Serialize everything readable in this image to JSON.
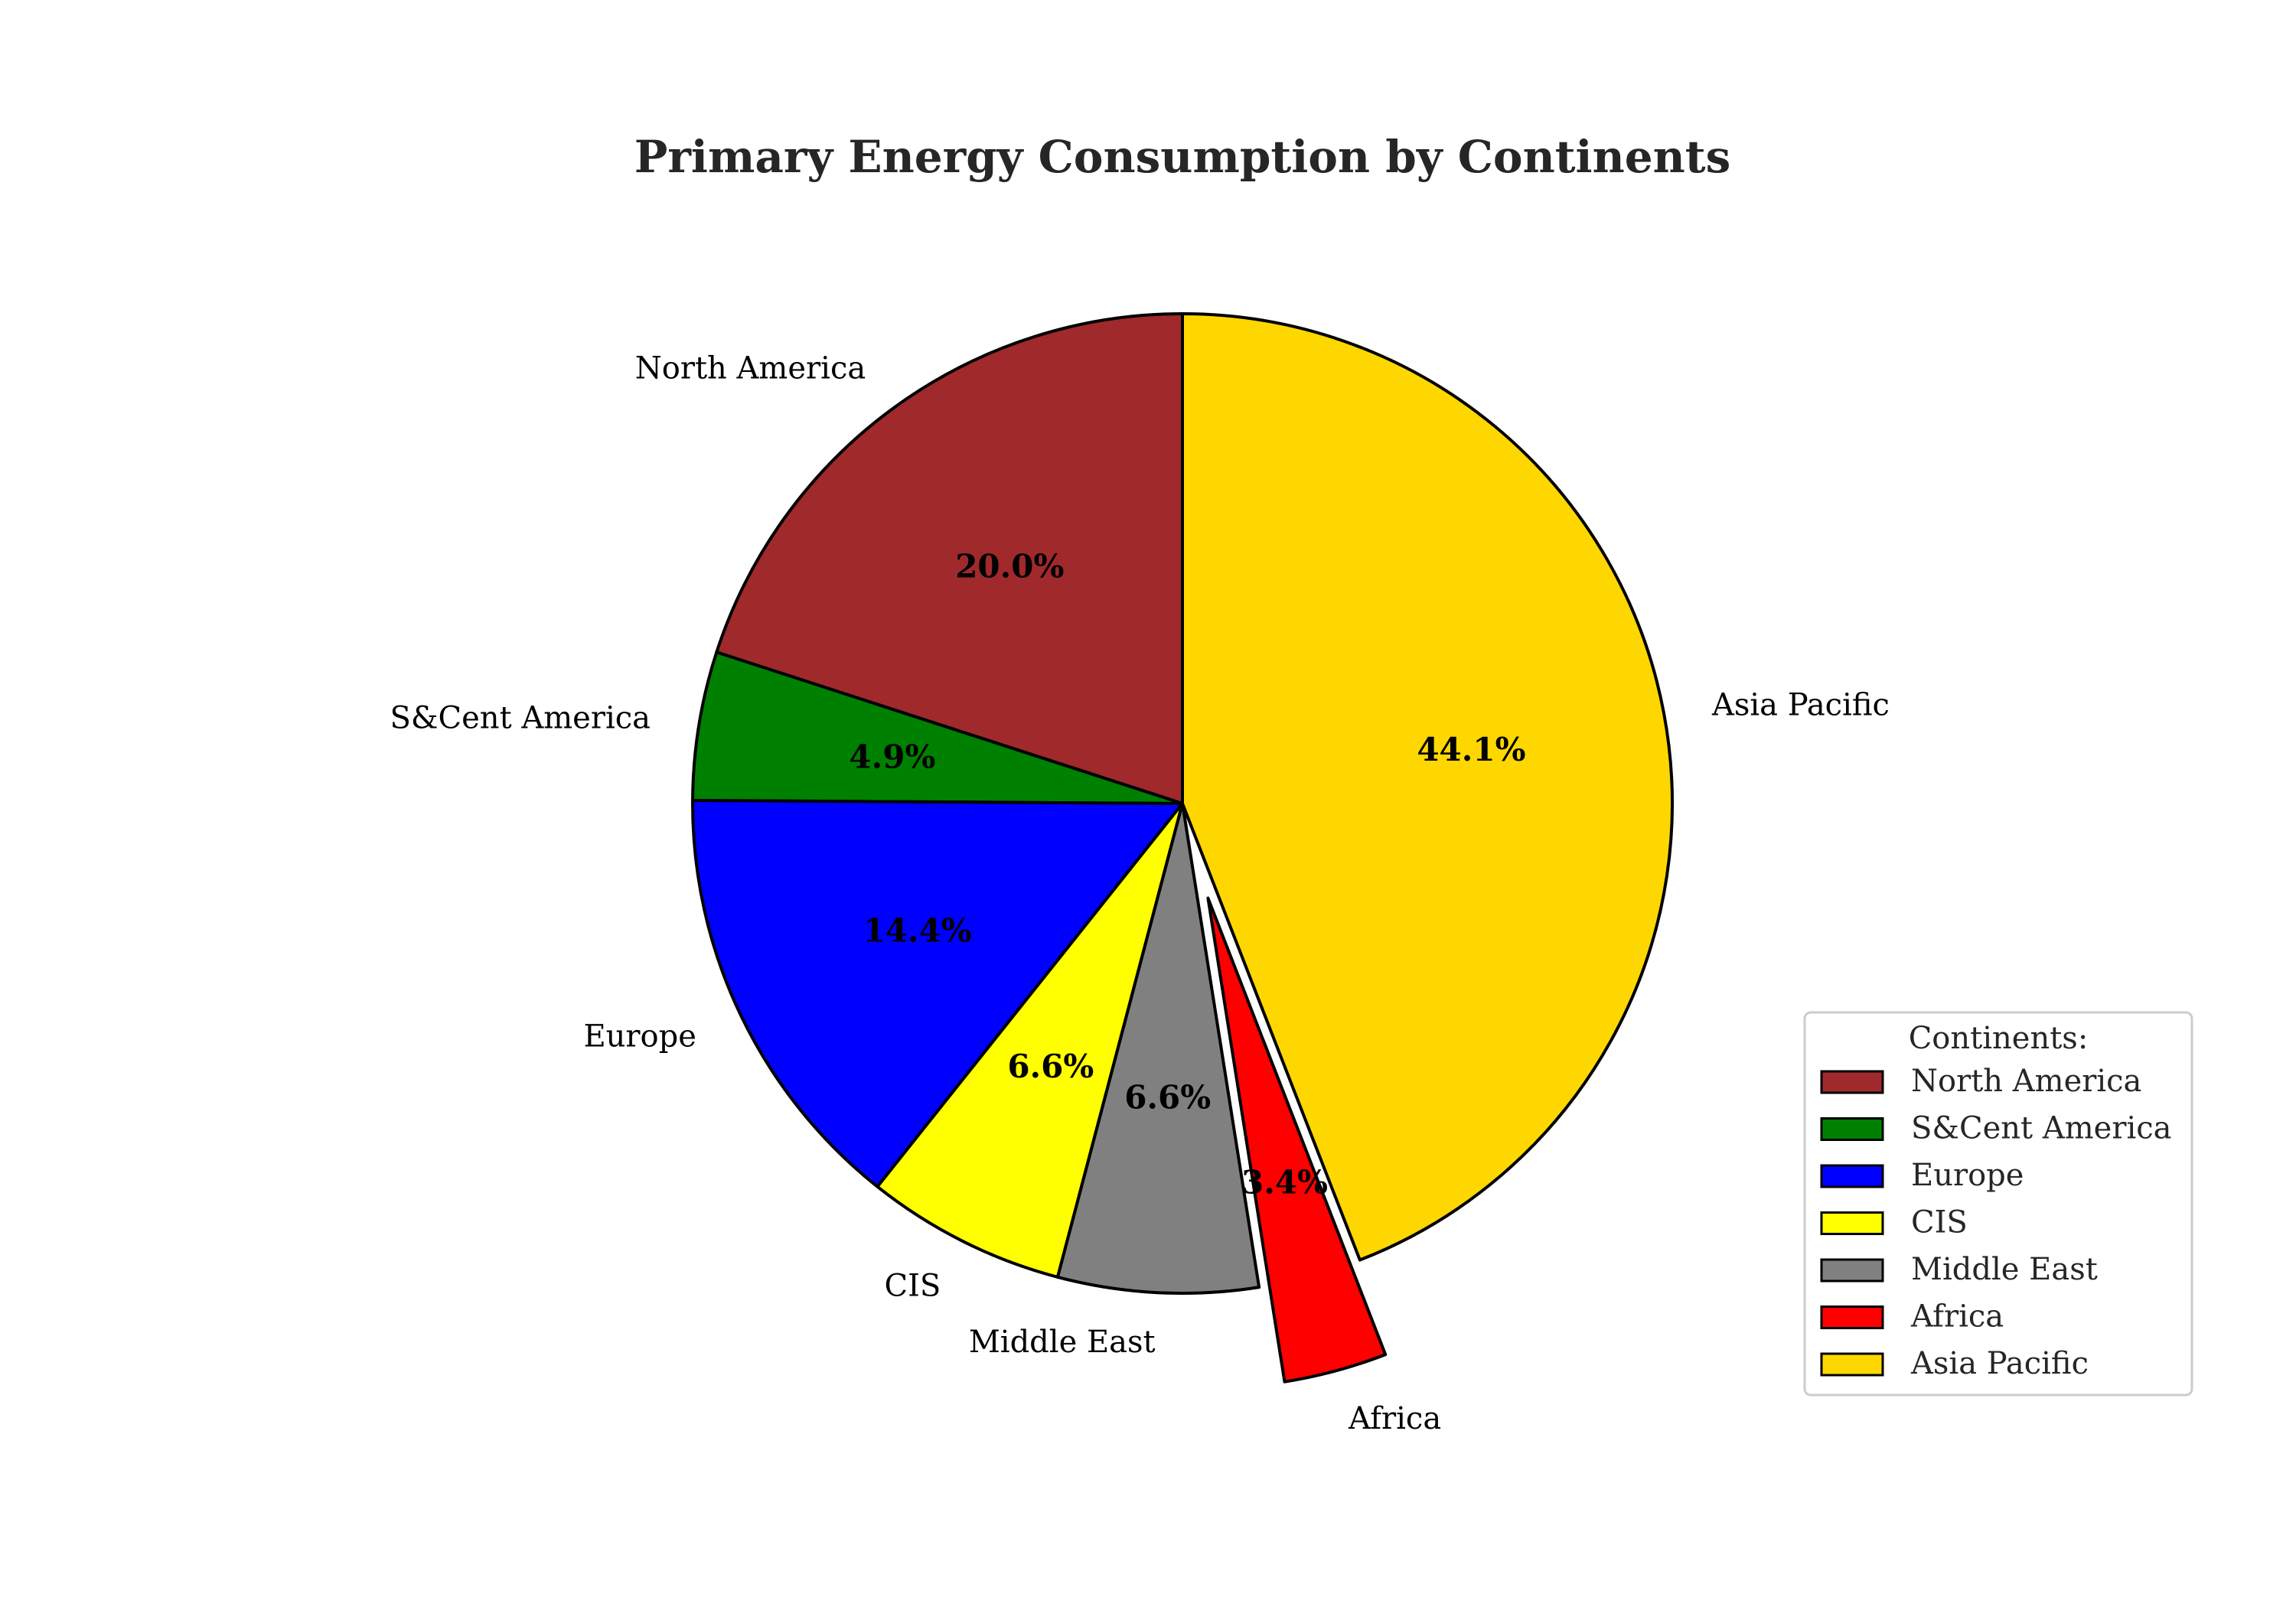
{
  "chart_data": {
    "type": "pie",
    "title": "Primary Energy Consumption by Continents",
    "categories": [
      "North America",
      "S&Cent America",
      "Europe",
      "CIS",
      "Middle East",
      "Africa",
      "Asia Pacific"
    ],
    "values": [
      20.0,
      4.9,
      14.4,
      6.6,
      6.6,
      3.4,
      44.1
    ],
    "value_labels": [
      "20.0%",
      "4.9%",
      "14.4%",
      "6.6%",
      "6.6%",
      "3.4%",
      "44.1%"
    ],
    "colors": [
      "#a0292b",
      "#008000",
      "#0000ff",
      "#ffff00",
      "#808080",
      "#ff0000",
      "#ffd700"
    ],
    "exploded": [
      "Africa"
    ],
    "start_angle": "90 degrees (top)",
    "direction": "counterclockwise",
    "legend": {
      "title": "Continents:",
      "placement": "lower-right",
      "entries": [
        "North America",
        "S&Cent America",
        "Europe",
        "CIS",
        "Middle East",
        "Africa",
        "Asia Pacific"
      ]
    }
  }
}
